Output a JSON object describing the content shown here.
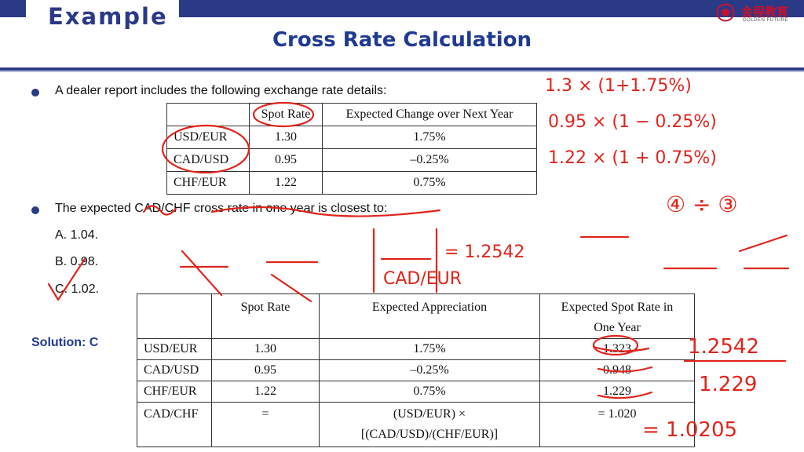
{
  "header": {
    "section_label": "Example",
    "title": "Cross Rate Calculation",
    "logo_cn": "金程教育",
    "logo_en": "GOLDEN FUTURE",
    "accent_color": "#2b3a86",
    "title_color": "#1f3a93"
  },
  "question": {
    "intro": "A dealer report includes the following exchange rate details:",
    "table_headers": [
      "",
      "Spot Rate",
      "Expected Change over Next Year"
    ],
    "table_rows": [
      [
        "USD/EUR",
        "1.30",
        "1.75%"
      ],
      [
        "CAD/USD",
        "0.95",
        "–0.25%"
      ],
      [
        "CHF/EUR",
        "1.22",
        "0.75%"
      ]
    ],
    "prompt": "The expected CAD/CHF cross rate in one year is closest to:",
    "options": [
      "A.  1.04.",
      "B.  0.98.",
      "C.  1.02."
    ]
  },
  "solution": {
    "label": "Solution: C",
    "headers": [
      "",
      "Spot Rate",
      "Expected Appreciation",
      "Expected Spot Rate in",
      "One Year"
    ],
    "rows": [
      [
        "USD/EUR",
        "1.30",
        "1.75%",
        "1.323"
      ],
      [
        "CAD/USD",
        "0.95",
        "–0.25%",
        "0.948"
      ],
      [
        "CHF/EUR",
        "1.22",
        "0.75%",
        "1.229"
      ]
    ],
    "final_row": [
      "CAD/CHF",
      "=",
      "(USD/EUR) ×",
      "[(CAD/USD)/(CHF/EUR)]",
      "= 1.020"
    ]
  },
  "annotations": {
    "color": "#e0241b",
    "eq1": "1.3 × (1+1.75%)",
    "eq2": "0.95 × (1 − 0.25%)",
    "eq3": "1.22 × (1 + 0.75%)",
    "step": "④ ÷ ③",
    "result_pair": "CAD/EUR",
    "result_value": "= 1.2542",
    "final_num": "1.2542",
    "final_den": "1.229",
    "final_val": "= 1.0205"
  }
}
